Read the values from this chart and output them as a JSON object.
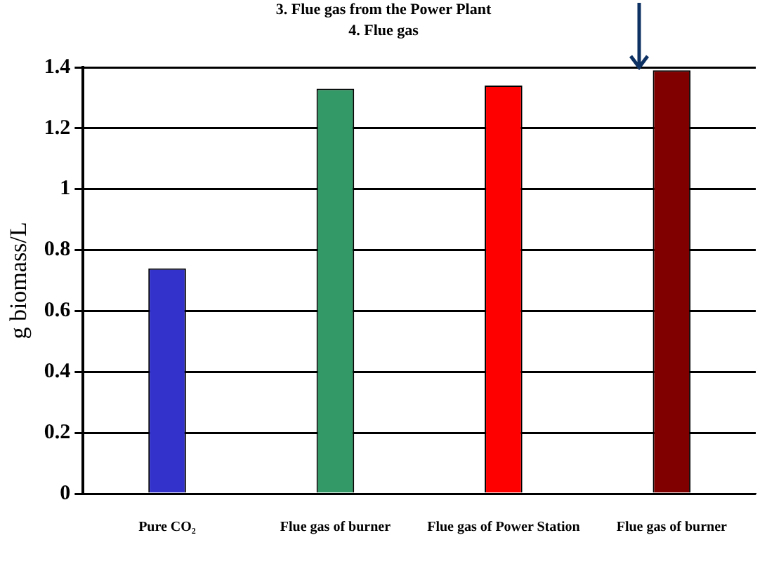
{
  "chart_data": {
    "type": "bar",
    "ylabel": "g biomass/L",
    "annotations": [
      "3. Flue gas from the Power Plant",
      "4. Flue gas"
    ],
    "categories": [
      "Pure CO₂",
      "Flue gas of burner",
      "Flue gas of Power Station",
      "Flue gas of burner"
    ],
    "values": [
      0.74,
      1.33,
      1.34,
      1.39
    ],
    "colors": [
      "#3333cc",
      "#339966",
      "#ff0000",
      "#800000"
    ],
    "ylim": [
      0,
      1.4
    ],
    "yticks": [
      0,
      0.2,
      0.4,
      0.6,
      0.8,
      1,
      1.2,
      1.4
    ],
    "grid": "y",
    "legend": false
  }
}
